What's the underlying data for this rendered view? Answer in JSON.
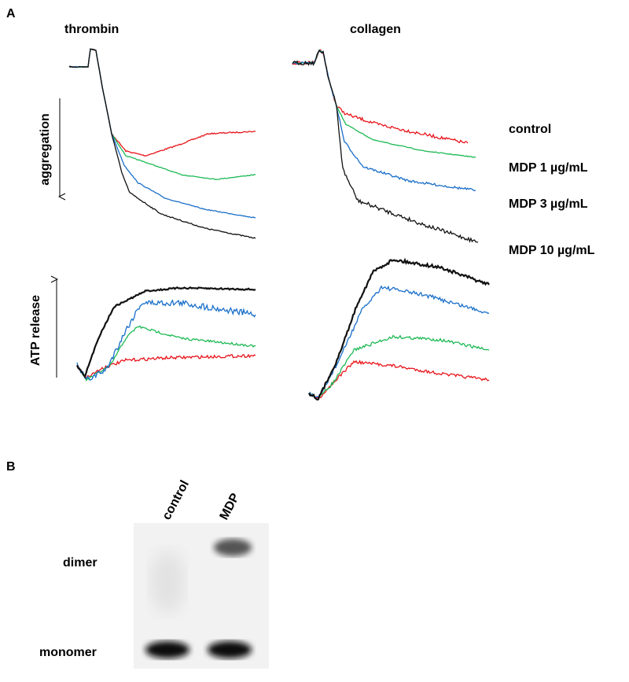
{
  "panel_a": {
    "label": "A",
    "conditions": [
      "thrombin",
      "collagen"
    ],
    "y_labels": [
      "aggregation",
      "ATP release"
    ],
    "legend": [
      {
        "name": "control",
        "color": "#e8141a"
      },
      {
        "name": "MDP 1 µg/mL",
        "color": "#1db954"
      },
      {
        "name": "MDP 3 µg/mL",
        "color": "#1a6fc9"
      },
      {
        "name": "MDP 10 µg/mL",
        "color": "#111111"
      }
    ]
  },
  "panel_b": {
    "label": "B",
    "lanes": [
      "control",
      "MDP"
    ],
    "bands": [
      "dimer",
      "monomer"
    ]
  }
}
